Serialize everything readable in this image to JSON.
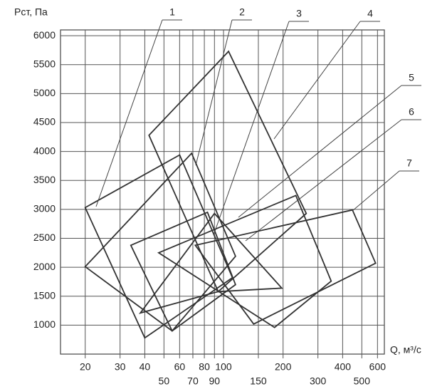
{
  "chart_data": {
    "type": "region",
    "y_label": "Pст, Па",
    "x_label": "Q, м³/с",
    "log_x": true,
    "grid": true,
    "xlim": [
      15,
      650
    ],
    "ylim": [
      500,
      6100
    ],
    "xticks": [
      20,
      30,
      40,
      50,
      60,
      70,
      80,
      90,
      100,
      150,
      200,
      300,
      400,
      500,
      600
    ],
    "yticks": [
      1000,
      1500,
      2000,
      2500,
      3000,
      3500,
      4000,
      4500,
      5000,
      5500,
      6000
    ],
    "color": "#333333",
    "series": [
      {
        "name": "1",
        "x": [
          20,
          60,
          111,
          40
        ],
        "y": [
          3030,
          3940,
          1820,
          780
        ]
      },
      {
        "name": "2",
        "x": [
          42,
          106,
          262,
          94
        ],
        "y": [
          4280,
          5730,
          2930,
          1580
        ]
      },
      {
        "name": "3",
        "x": [
          20,
          69,
          115,
          55
        ],
        "y": [
          2010,
          3970,
          2190,
          900
        ]
      },
      {
        "name": "4",
        "x": [
          34,
          83,
          115,
          55
        ],
        "y": [
          2380,
          2950,
          1700,
          900
        ]
      },
      {
        "name": "5",
        "x": [
          38,
          90,
          197,
          94
        ],
        "y": [
          1210,
          2930,
          1640,
          1580
        ]
      },
      {
        "name": "6",
        "x": [
          47,
          232,
          350,
          181
        ],
        "y": [
          2250,
          3240,
          1760,
          960
        ]
      },
      {
        "name": "7",
        "x": [
          72,
          448,
          587,
          142
        ],
        "y": [
          2380,
          2990,
          2070,
          1020
        ]
      }
    ]
  }
}
